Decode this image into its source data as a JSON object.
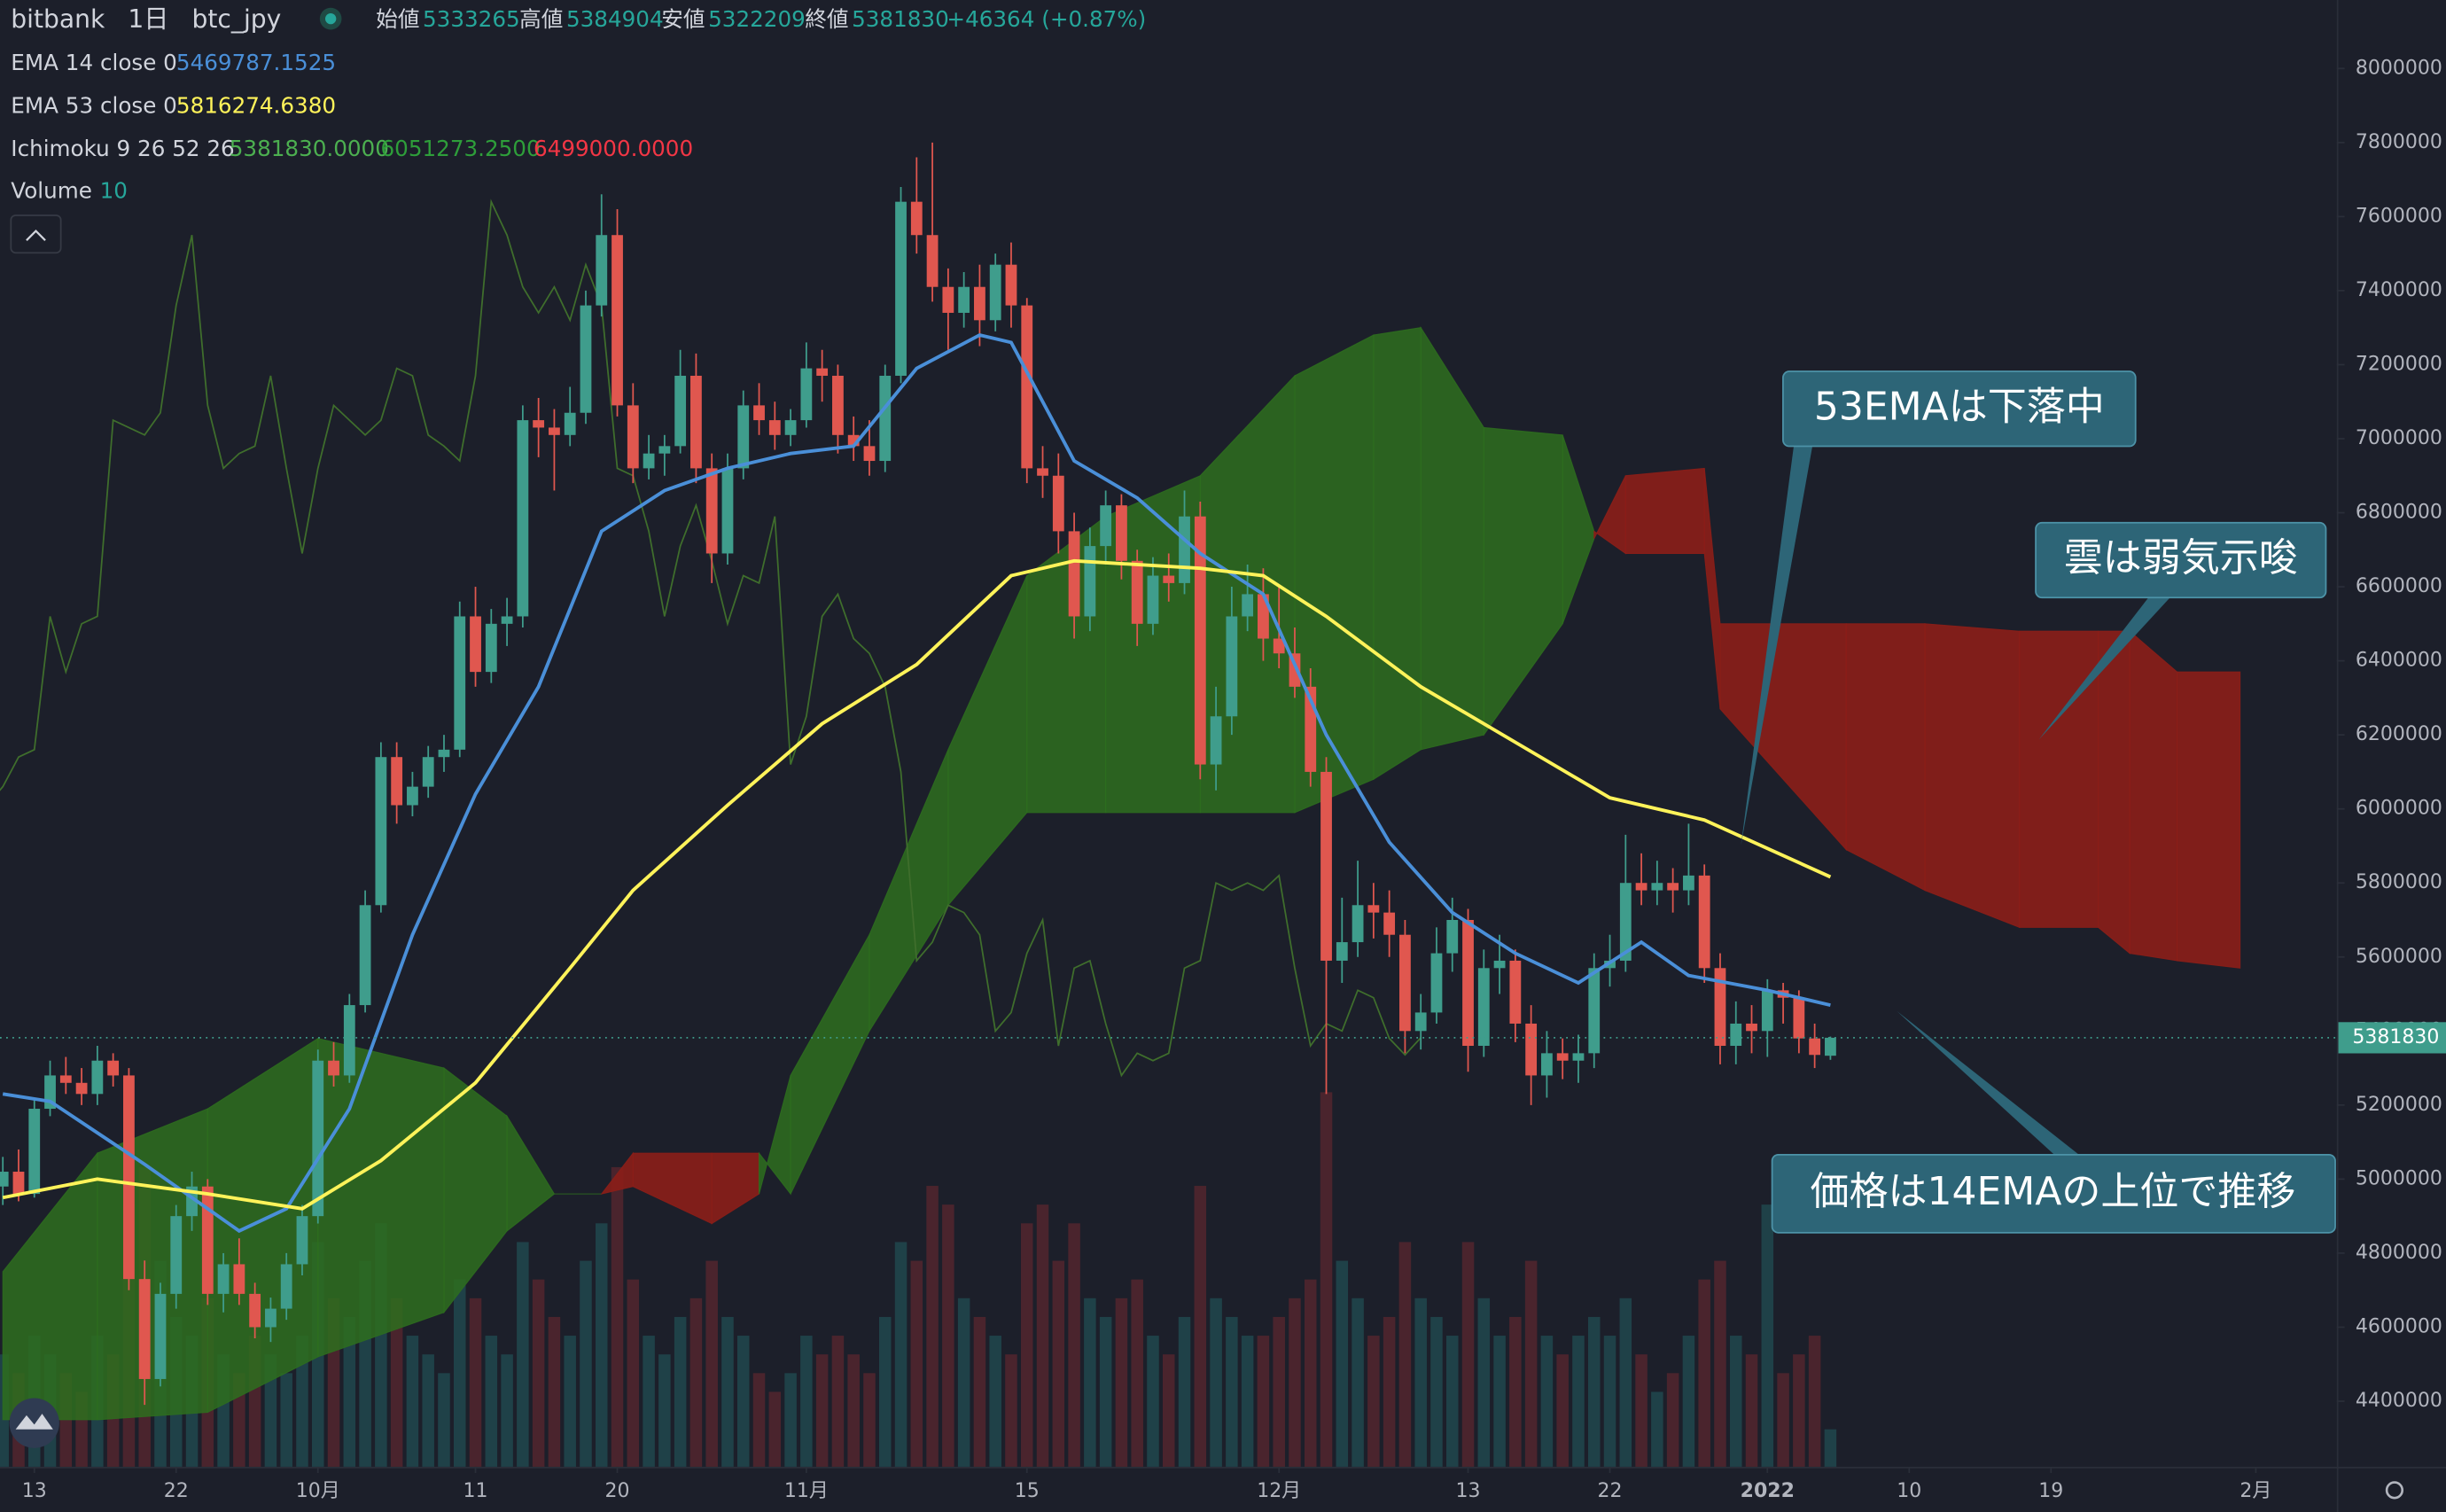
{
  "chart_data": {
    "type": "candlestick",
    "symbol": "bitbank",
    "interval": "1日",
    "pair": "btc_jpy",
    "ohlc_labels": [
      "始値",
      "高値",
      "安値",
      "終値"
    ],
    "change_label": "+46364 (+0.87%)",
    "header_value_color": "#26a69a",
    "xlim": [
      -0.18,
      148.14
    ],
    "ylim": [
      4223000,
      8185000
    ],
    "xticks": [
      {
        "value": 2,
        "label": "13"
      },
      {
        "value": 11,
        "label": "22"
      },
      {
        "value": 20,
        "label": "10月"
      },
      {
        "value": 30,
        "label": "11"
      },
      {
        "value": 39,
        "label": "20"
      },
      {
        "value": 51,
        "label": "11月"
      },
      {
        "value": 65,
        "label": "15"
      },
      {
        "value": 81,
        "label": "12月"
      },
      {
        "value": 93,
        "label": "13"
      },
      {
        "value": 102,
        "label": "22"
      },
      {
        "value": 112,
        "label": "2022",
        "bold": true
      },
      {
        "value": 121,
        "label": "10"
      },
      {
        "value": 130,
        "label": "19"
      },
      {
        "value": 143,
        "label": "2月"
      }
    ],
    "yticks": [
      4400000,
      4600000,
      4800000,
      5000000,
      5200000,
      5400000,
      5600000,
      5800000,
      6000000,
      6200000,
      6400000,
      6600000,
      6800000,
      7000000,
      7200000,
      7400000,
      7600000,
      7800000,
      8000000
    ],
    "candles": {
      "up_color": "#3f9d8c",
      "down_color": "#e0574f",
      "ohlc": [
        [
          4980000,
          5060000,
          4930000,
          5020000
        ],
        [
          5020000,
          5080000,
          4940000,
          4960000
        ],
        [
          4960000,
          5220000,
          4950000,
          5190000
        ],
        [
          5190000,
          5320000,
          5170000,
          5280000
        ],
        [
          5280000,
          5330000,
          5230000,
          5260000
        ],
        [
          5260000,
          5300000,
          5200000,
          5230000
        ],
        [
          5230000,
          5360000,
          5200000,
          5320000
        ],
        [
          5320000,
          5340000,
          5250000,
          5280000
        ],
        [
          5280000,
          5300000,
          4700000,
          4730000
        ],
        [
          4730000,
          4780000,
          4390000,
          4460000
        ],
        [
          4460000,
          4720000,
          4440000,
          4690000
        ],
        [
          4690000,
          4930000,
          4650000,
          4900000
        ],
        [
          4900000,
          5020000,
          4860000,
          4980000
        ],
        [
          4980000,
          5000000,
          4660000,
          4690000
        ],
        [
          4690000,
          4800000,
          4640000,
          4770000
        ],
        [
          4770000,
          4840000,
          4660000,
          4690000
        ],
        [
          4690000,
          4720000,
          4570000,
          4600000
        ],
        [
          4600000,
          4680000,
          4560000,
          4650000
        ],
        [
          4650000,
          4800000,
          4620000,
          4770000
        ],
        [
          4770000,
          4930000,
          4740000,
          4900000
        ],
        [
          4900000,
          5350000,
          4880000,
          5320000
        ],
        [
          5320000,
          5370000,
          5250000,
          5280000
        ],
        [
          5280000,
          5500000,
          5260000,
          5470000
        ],
        [
          5470000,
          5780000,
          5450000,
          5740000
        ],
        [
          5740000,
          6180000,
          5720000,
          6140000
        ],
        [
          6140000,
          6180000,
          5960000,
          6010000
        ],
        [
          6010000,
          6100000,
          5980000,
          6060000
        ],
        [
          6060000,
          6170000,
          6030000,
          6140000
        ],
        [
          6140000,
          6200000,
          6100000,
          6160000
        ],
        [
          6160000,
          6560000,
          6140000,
          6520000
        ],
        [
          6520000,
          6600000,
          6330000,
          6370000
        ],
        [
          6370000,
          6540000,
          6340000,
          6500000
        ],
        [
          6500000,
          6570000,
          6440000,
          6520000
        ],
        [
          6520000,
          7090000,
          6490000,
          7050000
        ],
        [
          7050000,
          7110000,
          6950000,
          7030000
        ],
        [
          7030000,
          7080000,
          6860000,
          7010000
        ],
        [
          7010000,
          7140000,
          6980000,
          7070000
        ],
        [
          7070000,
          7400000,
          7040000,
          7360000
        ],
        [
          7360000,
          7660000,
          7330000,
          7550000
        ],
        [
          7550000,
          7620000,
          7060000,
          7090000
        ],
        [
          7090000,
          7150000,
          6880000,
          6920000
        ],
        [
          6920000,
          7010000,
          6890000,
          6960000
        ],
        [
          6960000,
          7010000,
          6900000,
          6980000
        ],
        [
          6980000,
          7240000,
          6960000,
          7170000
        ],
        [
          7170000,
          7230000,
          6880000,
          6920000
        ],
        [
          6920000,
          6960000,
          6610000,
          6690000
        ],
        [
          6690000,
          6960000,
          6660000,
          6920000
        ],
        [
          6920000,
          7130000,
          6890000,
          7090000
        ],
        [
          7090000,
          7150000,
          7010000,
          7050000
        ],
        [
          7050000,
          7100000,
          6970000,
          7010000
        ],
        [
          7010000,
          7080000,
          6980000,
          7050000
        ],
        [
          7050000,
          7260000,
          7030000,
          7190000
        ],
        [
          7190000,
          7240000,
          7100000,
          7170000
        ],
        [
          7170000,
          7200000,
          6960000,
          7010000
        ],
        [
          7010000,
          7060000,
          6940000,
          6980000
        ],
        [
          6980000,
          7050000,
          6900000,
          6940000
        ],
        [
          6940000,
          7200000,
          6910000,
          7170000
        ],
        [
          7170000,
          7680000,
          7150000,
          7640000
        ],
        [
          7640000,
          7760000,
          7500000,
          7550000
        ],
        [
          7550000,
          7800000,
          7370000,
          7410000
        ],
        [
          7410000,
          7460000,
          7240000,
          7340000
        ],
        [
          7340000,
          7450000,
          7300000,
          7410000
        ],
        [
          7410000,
          7470000,
          7250000,
          7320000
        ],
        [
          7320000,
          7500000,
          7290000,
          7470000
        ],
        [
          7470000,
          7530000,
          7300000,
          7360000
        ],
        [
          7360000,
          7380000,
          6880000,
          6920000
        ],
        [
          6920000,
          6980000,
          6840000,
          6900000
        ],
        [
          6900000,
          6960000,
          6690000,
          6750000
        ],
        [
          6750000,
          6800000,
          6460000,
          6520000
        ],
        [
          6520000,
          6760000,
          6480000,
          6710000
        ],
        [
          6710000,
          6860000,
          6660000,
          6820000
        ],
        [
          6820000,
          6850000,
          6620000,
          6670000
        ],
        [
          6670000,
          6700000,
          6440000,
          6500000
        ],
        [
          6500000,
          6680000,
          6470000,
          6630000
        ],
        [
          6630000,
          6690000,
          6560000,
          6610000
        ],
        [
          6610000,
          6860000,
          6580000,
          6790000
        ],
        [
          6790000,
          6830000,
          6080000,
          6120000
        ],
        [
          6120000,
          6330000,
          6050000,
          6250000
        ],
        [
          6250000,
          6600000,
          6200000,
          6520000
        ],
        [
          6520000,
          6660000,
          6480000,
          6580000
        ],
        [
          6580000,
          6650000,
          6400000,
          6460000
        ],
        [
          6460000,
          6600000,
          6380000,
          6420000
        ],
        [
          6420000,
          6490000,
          6300000,
          6330000
        ],
        [
          6330000,
          6380000,
          6060000,
          6100000
        ],
        [
          6100000,
          6140000,
          5230000,
          5590000
        ],
        [
          5590000,
          5760000,
          5530000,
          5640000
        ],
        [
          5640000,
          5860000,
          5600000,
          5740000
        ],
        [
          5740000,
          5800000,
          5650000,
          5720000
        ],
        [
          5720000,
          5780000,
          5600000,
          5660000
        ],
        [
          5660000,
          5700000,
          5340000,
          5400000
        ],
        [
          5400000,
          5500000,
          5350000,
          5450000
        ],
        [
          5450000,
          5680000,
          5420000,
          5610000
        ],
        [
          5610000,
          5760000,
          5560000,
          5700000
        ],
        [
          5700000,
          5730000,
          5290000,
          5360000
        ],
        [
          5360000,
          5620000,
          5330000,
          5570000
        ],
        [
          5570000,
          5660000,
          5500000,
          5590000
        ],
        [
          5590000,
          5620000,
          5370000,
          5420000
        ],
        [
          5420000,
          5470000,
          5200000,
          5280000
        ],
        [
          5280000,
          5400000,
          5220000,
          5340000
        ],
        [
          5340000,
          5380000,
          5270000,
          5320000
        ],
        [
          5320000,
          5390000,
          5260000,
          5340000
        ],
        [
          5340000,
          5610000,
          5300000,
          5570000
        ],
        [
          5570000,
          5660000,
          5520000,
          5590000
        ],
        [
          5590000,
          5930000,
          5560000,
          5800000
        ],
        [
          5800000,
          5880000,
          5740000,
          5780000
        ],
        [
          5780000,
          5860000,
          5740000,
          5800000
        ],
        [
          5800000,
          5840000,
          5720000,
          5780000
        ],
        [
          5780000,
          5960000,
          5740000,
          5820000
        ],
        [
          5820000,
          5850000,
          5530000,
          5570000
        ],
        [
          5570000,
          5610000,
          5310000,
          5360000
        ],
        [
          5360000,
          5480000,
          5310000,
          5420000
        ],
        [
          5420000,
          5470000,
          5340000,
          5400000
        ],
        [
          5400000,
          5540000,
          5330000,
          5510000
        ],
        [
          5510000,
          5530000,
          5420000,
          5490000
        ],
        [
          5490000,
          5510000,
          5340000,
          5380000
        ],
        [
          5380000,
          5420000,
          5300000,
          5335466
        ],
        [
          5333265,
          5384904,
          5322209,
          5381830
        ]
      ]
    },
    "volume": {
      "name": "Volume",
      "length_label": "10",
      "label_color": "#26a69a",
      "up_color": "rgba(38,120,120,0.38)",
      "down_color": "rgba(150,45,50,0.38)",
      "values": [
        30,
        25,
        35,
        30,
        25,
        20,
        35,
        30,
        70,
        80,
        55,
        40,
        35,
        45,
        30,
        25,
        35,
        30,
        25,
        35,
        60,
        45,
        40,
        55,
        65,
        45,
        35,
        30,
        25,
        50,
        45,
        35,
        30,
        60,
        50,
        40,
        35,
        55,
        65,
        80,
        50,
        35,
        30,
        40,
        45,
        55,
        40,
        35,
        25,
        20,
        25,
        35,
        30,
        35,
        30,
        25,
        40,
        60,
        55,
        75,
        70,
        45,
        40,
        35,
        30,
        65,
        70,
        55,
        65,
        45,
        40,
        45,
        50,
        35,
        30,
        40,
        75,
        45,
        40,
        35,
        35,
        40,
        45,
        50,
        100,
        55,
        45,
        35,
        40,
        60,
        45,
        40,
        35,
        60,
        45,
        35,
        40,
        55,
        35,
        30,
        35,
        40,
        35,
        45,
        30,
        20,
        25,
        35,
        50,
        55,
        35,
        30,
        70,
        25,
        30,
        35,
        10
      ]
    },
    "lines": [
      {
        "name": "EMA 14 close 0",
        "value_label": "5469787.1525",
        "color": "#4a8fd8",
        "x": [
          0,
          3,
          9,
          15,
          18,
          22,
          26,
          30,
          34,
          38,
          42,
          46,
          50,
          54,
          58,
          62,
          64,
          68,
          72,
          76,
          80,
          84,
          88,
          92,
          96,
          100,
          104,
          107,
          112,
          116
        ],
        "values": [
          5230000,
          5210000,
          5040000,
          4860000,
          4920000,
          5190000,
          5660000,
          6040000,
          6330000,
          6750000,
          6860000,
          6920000,
          6960000,
          6980000,
          7190000,
          7280000,
          7260000,
          6940000,
          6840000,
          6690000,
          6580000,
          6200000,
          5910000,
          5720000,
          5610000,
          5530000,
          5640000,
          5550000,
          5510000,
          5469787.1525
        ]
      },
      {
        "name": "EMA 53 close 0",
        "value_label": "5816274.6380",
        "color": "#fff35a",
        "x": [
          0,
          6,
          13,
          19,
          24,
          30,
          36,
          40,
          46,
          52,
          58,
          64,
          68,
          76,
          80,
          84,
          90,
          96,
          102,
          108,
          116
        ],
        "values": [
          4950000,
          5000000,
          4960000,
          4920000,
          5050000,
          5260000,
          5570000,
          5780000,
          6010000,
          6230000,
          6390000,
          6630000,
          6670000,
          6650000,
          6630000,
          6520000,
          6330000,
          6180000,
          6030000,
          5970000,
          5816274.638
        ]
      }
    ],
    "ichimoku": {
      "name": "Ichimoku 9 26 52 26",
      "value_labels": [
        "5381830.0000",
        "6051273.2500",
        "6499000.0000"
      ],
      "value_colors": [
        "#4caf50",
        "#2e9e3a",
        "#f23645"
      ],
      "displacement": 26,
      "bull_color": "rgba(46,110,30,0.85)",
      "bear_color": "rgba(140,30,24,0.9)",
      "lagging_color": "#3f6e2c",
      "x": [
        0,
        6,
        13,
        20,
        28,
        32,
        35,
        38,
        40,
        45,
        48,
        50,
        55,
        60,
        65,
        70,
        76,
        82,
        87,
        90,
        94,
        99,
        101,
        103,
        108,
        109,
        117,
        122,
        128,
        133,
        135,
        138,
        142
      ],
      "span_a": [
        4750000,
        5070000,
        5190000,
        5380000,
        5300000,
        5170000,
        4960000,
        4960000,
        4980000,
        4880000,
        4960000,
        5280000,
        5660000,
        6160000,
        6630000,
        6790000,
        6900000,
        7170000,
        7280000,
        7300000,
        7030000,
        7010000,
        6750000,
        6690000,
        6690000,
        6270000,
        5890000,
        5780000,
        5680000,
        5680000,
        5610000,
        5590000,
        5570000
      ],
      "span_b": [
        4350000,
        4350000,
        4370000,
        4520000,
        4640000,
        4860000,
        4960000,
        4960000,
        5070000,
        5070000,
        5070000,
        4960000,
        5400000,
        5740000,
        5990000,
        5990000,
        5990000,
        5990000,
        6080000,
        6160000,
        6200000,
        6500000,
        6730000,
        6900000,
        6920000,
        6500000,
        6500000,
        6500000,
        6480000,
        6480000,
        6480000,
        6370000,
        6370000
      ]
    },
    "annotations": [
      "53EMAは下落中",
      "雲は弱気示唆",
      "価格は14EMAの上位で推移"
    ]
  }
}
